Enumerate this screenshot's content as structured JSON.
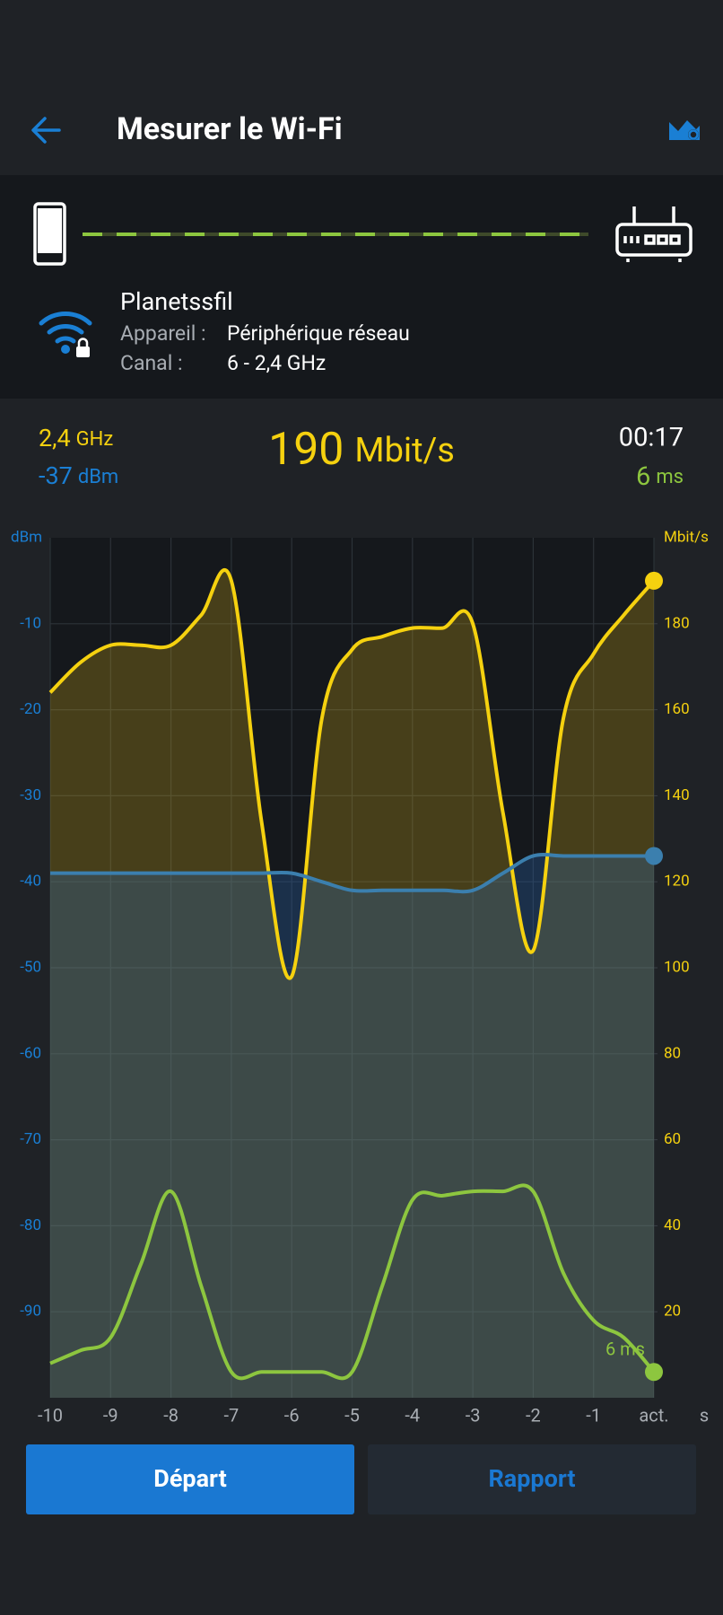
{
  "header": {
    "title": "Mesurer le Wi-Fi"
  },
  "connection": {
    "network": "Planetssfil",
    "device_label": "Appareil :",
    "device": "Périphérique réseau",
    "channel_label": "Canal :",
    "channel": "6 - 2,4 GHz"
  },
  "stats": {
    "band": {
      "value": "2,4",
      "unit": "GHz"
    },
    "signal": {
      "value": "-37",
      "unit": "dBm"
    },
    "speed": {
      "value": "190",
      "unit": "Mbit/s"
    },
    "time": "00:17",
    "latency": {
      "value": "6",
      "unit": "ms"
    }
  },
  "chart_data": {
    "type": "line",
    "y_label": "dBm",
    "y2_label": "Mbit/s",
    "x_label": "s",
    "annotation": "6 ms",
    "x": [
      -10,
      -9.5,
      -9,
      -8.5,
      -8,
      -7.5,
      -7,
      -6.5,
      -6,
      -5.5,
      -5,
      -4.5,
      -4,
      -3.5,
      -3,
      -2.5,
      -2,
      -1.5,
      -1,
      -0.5,
      0
    ],
    "series": [
      {
        "color": "#f5d10f",
        "fill": "rgba(200,165,20,0.28)",
        "axis": "y2",
        "values": [
          164,
          171,
          175,
          175,
          175,
          182,
          190,
          134,
          98,
          158,
          174,
          177,
          179,
          179,
          180,
          136,
          104,
          158,
          173,
          182,
          190
        ]
      },
      {
        "color": "#3b7fae",
        "fill": "rgba(40,100,170,0.32)",
        "axis": "y",
        "values": [
          -39,
          -39,
          -39,
          -39,
          -39,
          -39,
          -39,
          -39,
          -39,
          -40,
          -41,
          -41,
          -41,
          -41,
          -41,
          -39,
          -37,
          -37,
          -37,
          -37,
          -37
        ]
      },
      {
        "color": "#8dc63f",
        "axis": "y2",
        "values": [
          8,
          11,
          14,
          31,
          48,
          26,
          6,
          6,
          6,
          6,
          6,
          26,
          46,
          47,
          48,
          48,
          48,
          29,
          18,
          14,
          6
        ]
      }
    ],
    "xlim": [
      -10,
      0
    ],
    "xticks": [
      -10,
      -9,
      -8,
      -7,
      -6,
      -5,
      -4,
      -3,
      -2,
      -1,
      {
        "value": 0,
        "label": "act."
      }
    ],
    "ylim": [
      -100,
      0
    ],
    "yticks": [
      -10,
      -20,
      -30,
      -40,
      -50,
      -60,
      -70,
      -80,
      -90
    ],
    "y2lim": [
      0,
      200
    ],
    "y2ticks": [
      20,
      40,
      60,
      80,
      100,
      120,
      140,
      160,
      180
    ],
    "grid": true
  },
  "buttons": {
    "start": "Départ",
    "report": "Rapport"
  }
}
